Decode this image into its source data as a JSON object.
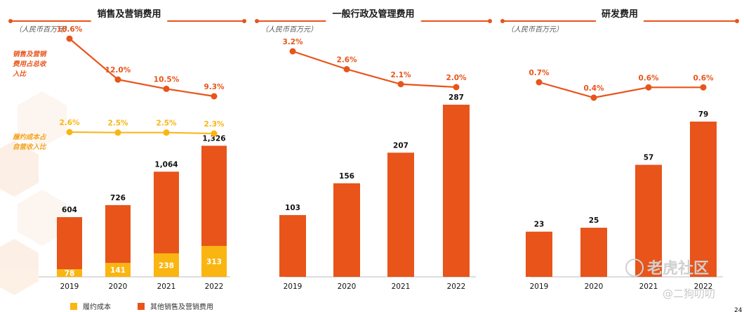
{
  "colors": {
    "orange": "#E8541A",
    "yellow": "#FAB511",
    "rule": "#E8541A"
  },
  "chart_data": [
    {
      "type": "bar",
      "title": "销售及营销费用",
      "unit": "（人民币百万元）",
      "categories": [
        "2019",
        "2020",
        "2021",
        "2022"
      ],
      "stacked": true,
      "series": [
        {
          "name": "履约成本",
          "values": [
            78,
            141,
            238,
            313
          ]
        },
        {
          "name": "其他销售及营销费用",
          "values": [
            526,
            585,
            826,
            1013
          ]
        }
      ],
      "totals": [
        "604",
        "726",
        "1,064",
        "1,326"
      ],
      "inner_labels": [
        "78",
        "141",
        "238",
        "313"
      ],
      "ylim": [
        0,
        1500
      ],
      "lines": [
        {
          "name": "销售及营销费用占总收入比",
          "values": [
            18.6,
            12.0,
            10.5,
            9.3
          ],
          "labels": [
            "18.6%",
            "12.0%",
            "10.5%",
            "9.3%"
          ]
        },
        {
          "name": "履约成本占自营收入比",
          "values": [
            2.6,
            2.5,
            2.5,
            2.3
          ],
          "labels": [
            "2.6%",
            "2.5%",
            "2.5%",
            "2.3%"
          ]
        }
      ],
      "legend": [
        {
          "label": "履约成本",
          "color": "#FAB511"
        },
        {
          "label": "其他销售及营销费用",
          "color": "#E8541A"
        }
      ]
    },
    {
      "type": "bar",
      "title": "一般行政及管理费用",
      "unit": "（人民币百万元）",
      "categories": [
        "2019",
        "2020",
        "2021",
        "2022"
      ],
      "values": [
        103,
        156,
        207,
        287
      ],
      "value_labels": [
        "103",
        "156",
        "207",
        "287"
      ],
      "ylim": [
        0,
        300
      ],
      "lines": [
        {
          "values": [
            3.2,
            2.6,
            2.1,
            2.0
          ],
          "labels": [
            "3.2%",
            "2.6%",
            "2.1%",
            "2.0%"
          ]
        }
      ]
    },
    {
      "type": "bar",
      "title": "研发费用",
      "unit": "（人民币百万元）",
      "categories": [
        "2019",
        "2020",
        "2021",
        "2022"
      ],
      "values": [
        23,
        25,
        57,
        79
      ],
      "value_labels": [
        "23",
        "25",
        "57",
        "79"
      ],
      "ylim": [
        0,
        85
      ],
      "lines": [
        {
          "values": [
            0.7,
            0.4,
            0.6,
            0.6
          ],
          "labels": [
            "0.7%",
            "0.4%",
            "0.6%",
            "0.6%"
          ]
        }
      ]
    }
  ],
  "side_labels": {
    "line1": [
      "销售及营销",
      "费用占总收",
      "入比"
    ],
    "line2": [
      "履约成本占",
      "自营收入比"
    ]
  },
  "watermark": {
    "main": "老虎社区",
    "sub": "@二狗叨叨"
  },
  "page_number": "24"
}
